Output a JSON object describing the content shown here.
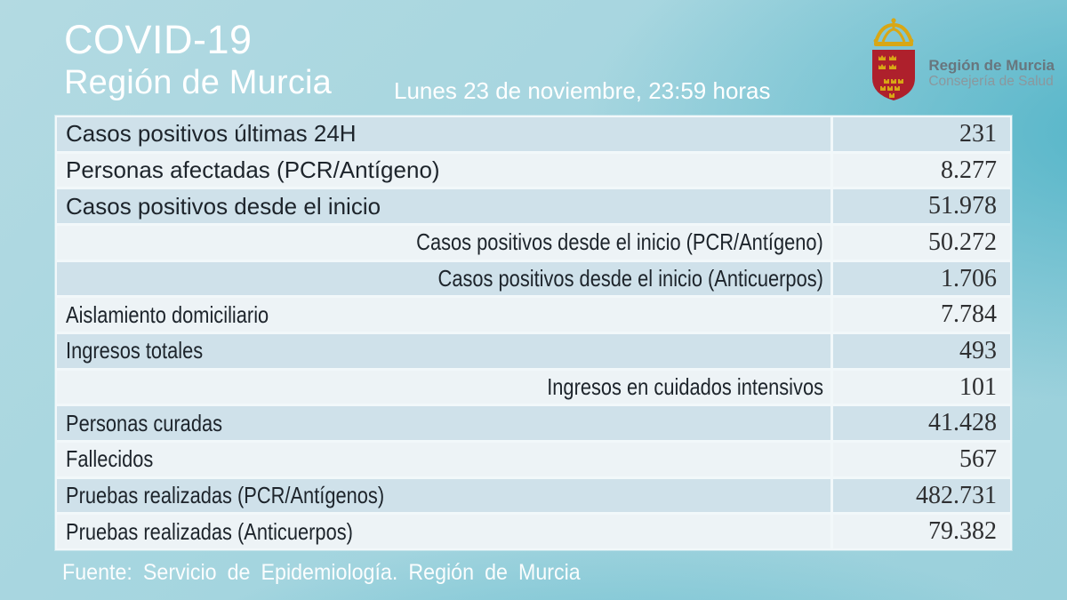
{
  "header": {
    "title": "COVID-19",
    "subtitle": "Región de Murcia",
    "datetime": "Lunes 23 de noviembre, 23:59 horas"
  },
  "logo": {
    "org": "Región de Murcia",
    "dept": "Consejería de Salud",
    "icon": "murcia-coat-of-arms",
    "shield_color": "#ae202c",
    "crown_color": "#d8a715",
    "text_color": "#68767e"
  },
  "table": {
    "rows": [
      {
        "label": "Casos positivos últimas 24H",
        "value": "231",
        "indent": false
      },
      {
        "label": "Personas afectadas (PCR/Antígeno)",
        "value": "8.277",
        "indent": false
      },
      {
        "label": "Casos positivos desde el inicio",
        "value": "51.978",
        "indent": false
      },
      {
        "label": "Casos positivos desde el inicio (PCR/Antígeno)",
        "value": "50.272",
        "indent": true
      },
      {
        "label": "Casos positivos desde el inicio (Anticuerpos)",
        "value": "1.706",
        "indent": true
      },
      {
        "label": "Aislamiento domiciliario",
        "value": "7.784",
        "indent": false
      },
      {
        "label": "Ingresos totales",
        "value": "493",
        "indent": false
      },
      {
        "label": "Ingresos en cuidados intensivos",
        "value": "101",
        "indent": true
      },
      {
        "label": "Personas curadas",
        "value": "41.428",
        "indent": false
      },
      {
        "label": "Fallecidos",
        "value": "567",
        "indent": false
      },
      {
        "label": "Pruebas realizadas (PCR/Antígenos)",
        "value": "482.731",
        "indent": false
      },
      {
        "label": "Pruebas realizadas (Anticuerpos)",
        "value": "79.382",
        "indent": false
      }
    ],
    "colors": {
      "row_blue": "#cfe1ea",
      "row_light": "#edf3f6",
      "grid": "#f2f8fa"
    }
  },
  "footer": {
    "source": "Fuente: Servicio de Epidemiología. Región de Murcia"
  },
  "background": {
    "base": "#a4d5df",
    "deep": "#48b0c5"
  }
}
